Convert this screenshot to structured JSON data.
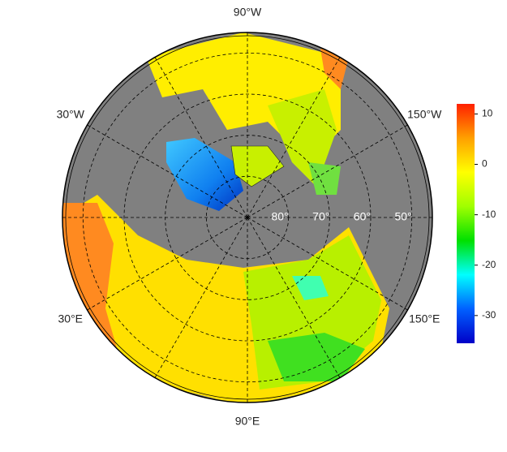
{
  "map": {
    "longitude_labels": [
      {
        "value": -90,
        "label": "90°W"
      },
      {
        "value": -30,
        "label": "30°W"
      },
      {
        "value": -150,
        "label": "150°W"
      },
      {
        "value": 30,
        "label": "30°E"
      },
      {
        "value": 150,
        "label": "150°E"
      },
      {
        "value": 90,
        "label": "90°E"
      }
    ],
    "latitude_labels": [
      {
        "value": 80,
        "label": "80°"
      },
      {
        "value": 70,
        "label": "70°"
      },
      {
        "value": 60,
        "label": "60°"
      },
      {
        "value": 50,
        "label": "50°"
      }
    ],
    "colorbar": {
      "range": [
        -35.5,
        12
      ],
      "ticks": [
        10,
        0,
        -10,
        -20,
        -30
      ],
      "colors": [
        "#0000c8",
        "#0060ff",
        "#00ffff",
        "#00e000",
        "#a0ff00",
        "#ffff00",
        "#ffa000",
        "#ff2000"
      ]
    }
  }
}
